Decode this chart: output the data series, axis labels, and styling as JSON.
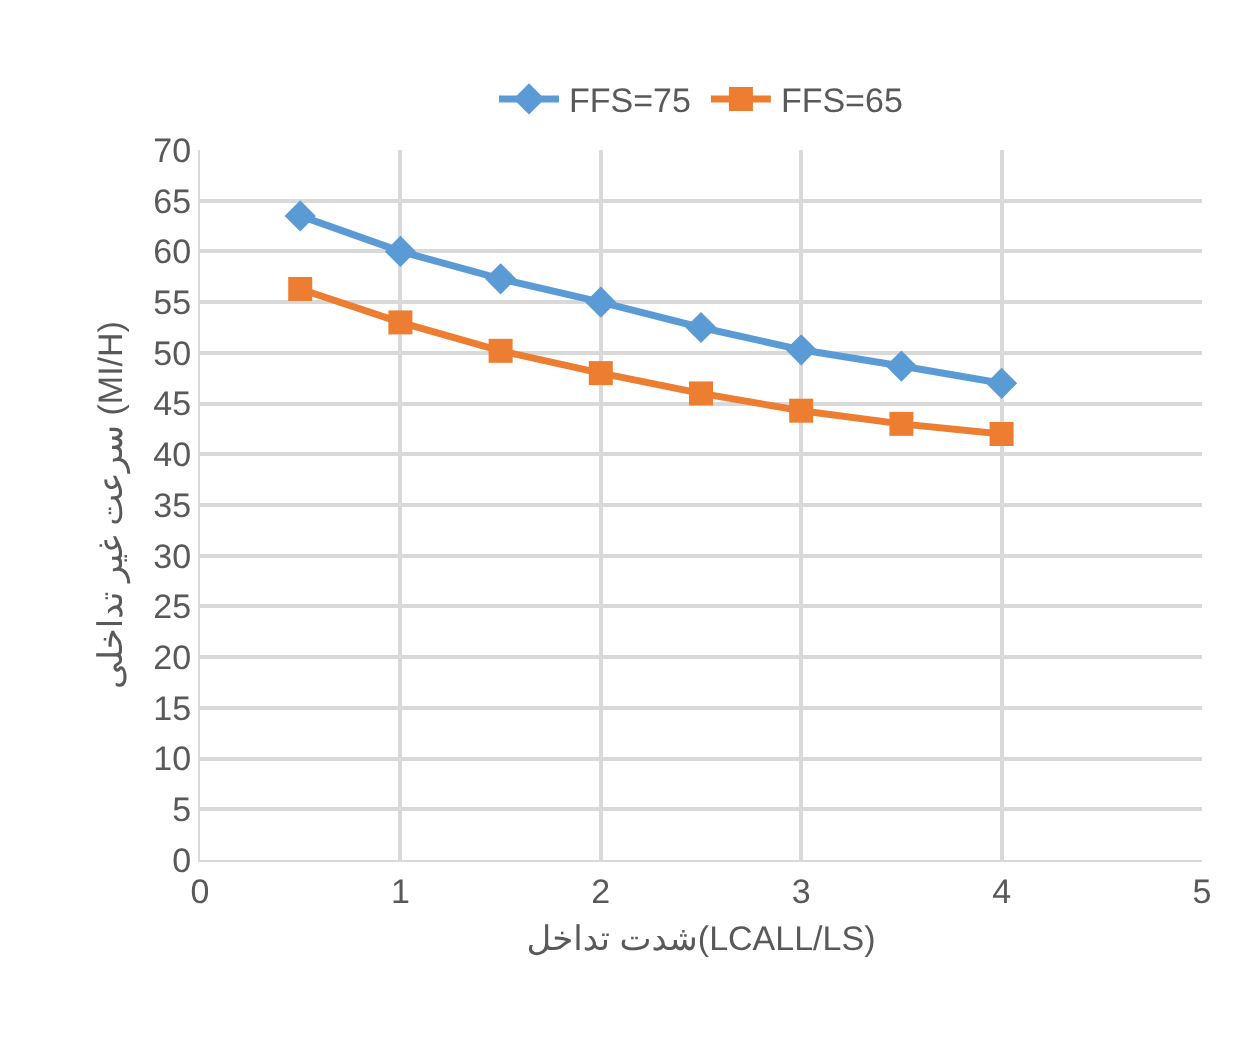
{
  "chart_data": {
    "type": "line",
    "xlabel": "شدت تداخل(LCALL/LS)",
    "ylabel": "سرعت غیر تداخلی (MI/H)",
    "x": [
      0.5,
      1,
      1.5,
      2,
      2.5,
      3,
      3.5,
      4
    ],
    "series": [
      {
        "name": "FFS=75",
        "color": "#5b9bd5",
        "marker": "diamond",
        "values": [
          63.5,
          60,
          57.3,
          55,
          52.5,
          50.3,
          48.7,
          47
        ]
      },
      {
        "name": "FFS=65",
        "color": "#ed7d31",
        "marker": "square",
        "values": [
          56.3,
          53,
          50.2,
          48,
          46,
          44.3,
          43,
          42
        ]
      }
    ],
    "xlim": [
      0,
      5
    ],
    "xticks": [
      0,
      1,
      2,
      3,
      4,
      5
    ],
    "ylim": [
      0,
      70
    ],
    "yticks": [
      0,
      5,
      10,
      15,
      20,
      25,
      30,
      35,
      40,
      45,
      50,
      55,
      60,
      65,
      70
    ],
    "grid": true,
    "legend": "top",
    "line_style": "solid"
  }
}
